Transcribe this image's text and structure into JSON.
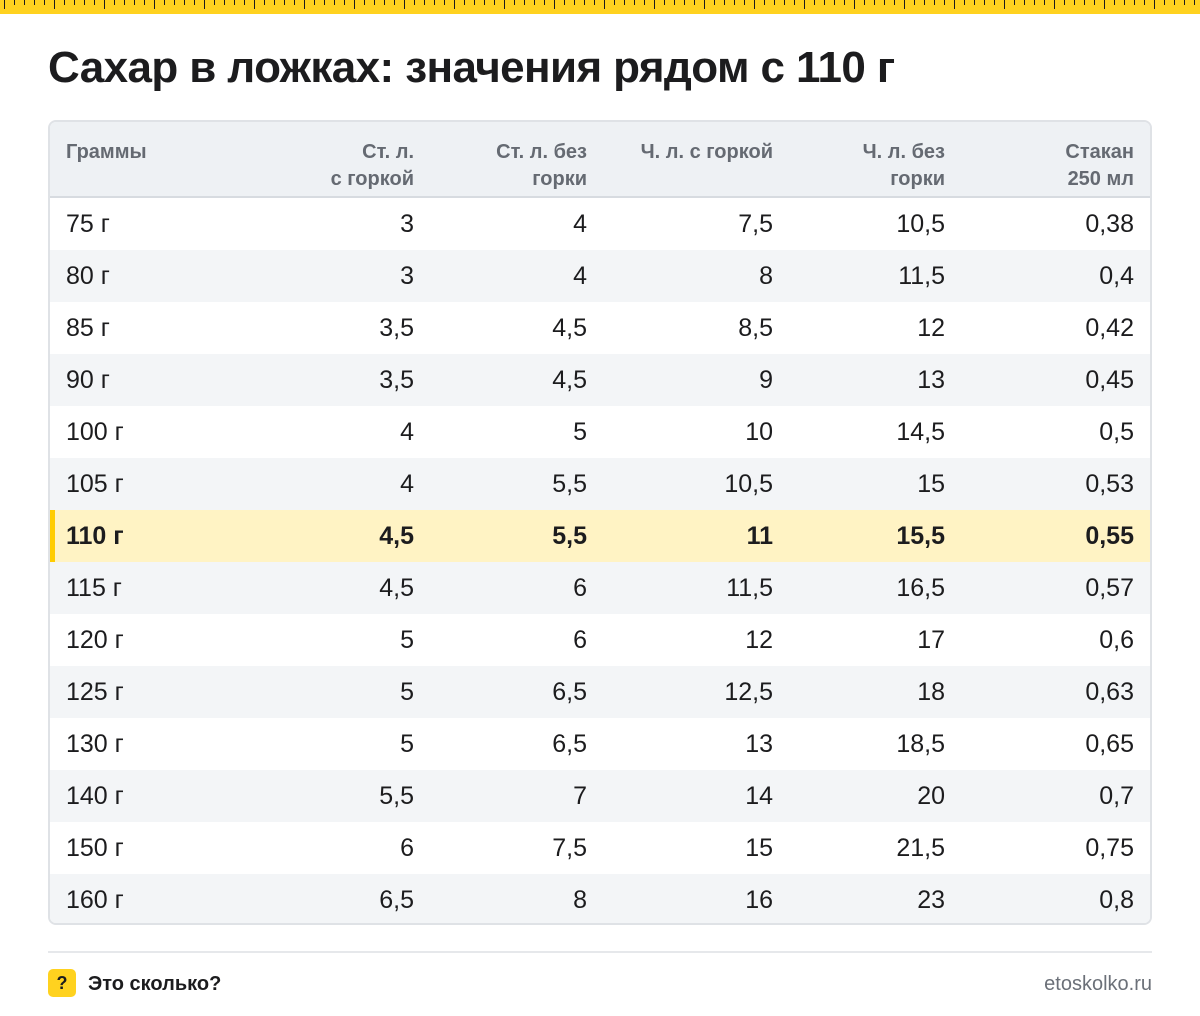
{
  "title": "Сахар в ложках: значения рядом с 110 г",
  "table": {
    "headers": {
      "grams": "Граммы",
      "tbsp_heaped": [
        "Ст. л.",
        "с горкой"
      ],
      "tbsp_level": [
        "Ст. л. без",
        "горки"
      ],
      "tsp_heaped": [
        "Ч. л. с горкой"
      ],
      "tsp_level": [
        "Ч. л. без",
        "горки"
      ],
      "glass": [
        "Стакан",
        "250 мл"
      ]
    },
    "highlighted_row": 6,
    "rows": [
      [
        "75 г",
        "3",
        "4",
        "7,5",
        "10,5",
        "0,38"
      ],
      [
        "80 г",
        "3",
        "4",
        "8",
        "11,5",
        "0,4"
      ],
      [
        "85 г",
        "3,5",
        "4,5",
        "8,5",
        "12",
        "0,42"
      ],
      [
        "90 г",
        "3,5",
        "4,5",
        "9",
        "13",
        "0,45"
      ],
      [
        "100 г",
        "4",
        "5",
        "10",
        "14,5",
        "0,5"
      ],
      [
        "105 г",
        "4",
        "5,5",
        "10,5",
        "15",
        "0,53"
      ],
      [
        "110 г",
        "4,5",
        "5,5",
        "11",
        "15,5",
        "0,55"
      ],
      [
        "115 г",
        "4,5",
        "6",
        "11,5",
        "16,5",
        "0,57"
      ],
      [
        "120 г",
        "5",
        "6",
        "12",
        "17",
        "0,6"
      ],
      [
        "125 г",
        "5",
        "6,5",
        "12,5",
        "18",
        "0,63"
      ],
      [
        "130 г",
        "5",
        "6,5",
        "13",
        "18,5",
        "0,65"
      ],
      [
        "140 г",
        "5,5",
        "7",
        "14",
        "20",
        "0,7"
      ],
      [
        "150 г",
        "6",
        "7,5",
        "15",
        "21,5",
        "0,75"
      ],
      [
        "160 г",
        "6,5",
        "8",
        "16",
        "23",
        "0,8"
      ]
    ]
  },
  "footer": {
    "logo_glyph": "?",
    "brand": "Это сколько?",
    "url": "etoskolko.ru"
  },
  "colors": {
    "accent_yellow": "#ffd21f",
    "highlight_row": "#fff3c4",
    "header_bg": "#eef1f4",
    "zebra_bg": "#f3f5f7"
  }
}
